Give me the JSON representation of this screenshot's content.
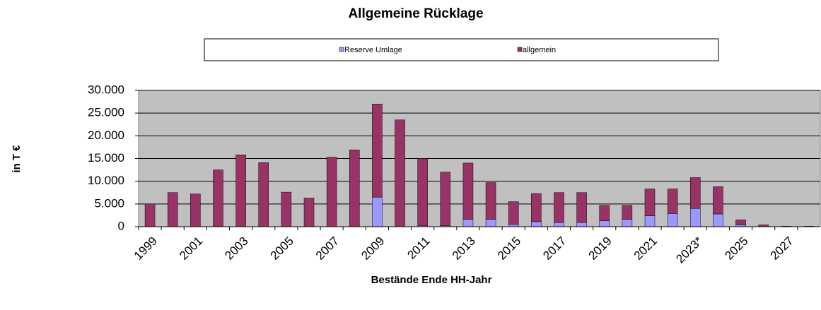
{
  "chart_data": {
    "type": "bar",
    "stacked": true,
    "title": "Allgemeine Rücklage",
    "xlabel": "Bestände Ende HH-Jahr",
    "ylabel": "in T €",
    "categories": [
      "1999",
      null,
      "2001",
      null,
      "2003",
      null,
      "2005",
      null,
      "2007",
      null,
      "2009",
      null,
      "2011",
      null,
      "2013",
      null,
      "2015",
      null,
      "2017",
      null,
      "2019",
      null,
      "2021",
      null,
      "2023*",
      null,
      "2025",
      null,
      "2027",
      null
    ],
    "series": [
      {
        "name": "Reserve Umlage",
        "color": "#9999ff",
        "values": [
          0,
          0,
          0,
          0,
          0,
          0,
          0,
          0,
          0,
          0,
          6500,
          0,
          200,
          200,
          1600,
          1600,
          500,
          1100,
          900,
          900,
          1300,
          1600,
          2400,
          2900,
          4000,
          2800,
          400,
          0,
          0,
          0
        ]
      },
      {
        "name": "allgemein",
        "color": "#993366",
        "values": [
          5000,
          7500,
          7200,
          12500,
          15800,
          14100,
          7600,
          6300,
          15300,
          16900,
          20500,
          23500,
          14800,
          11800,
          12400,
          8100,
          5000,
          6200,
          6600,
          6600,
          3400,
          3100,
          5900,
          5400,
          6800,
          6000,
          1100,
          400,
          100,
          100
        ]
      }
    ],
    "ylim": [
      0,
      30000
    ],
    "yticks": [
      0,
      {
        "value": 5000,
        "label": "5.000"
      },
      {
        "value": 10000,
        "label": "10.000"
      },
      {
        "value": 15000,
        "label": "15.000"
      },
      {
        "value": 20000,
        "label": "20.000"
      },
      {
        "value": 25000,
        "label": "25.000"
      },
      {
        "value": 30000,
        "label": "30.000"
      }
    ],
    "grid": true,
    "legend": "top"
  }
}
